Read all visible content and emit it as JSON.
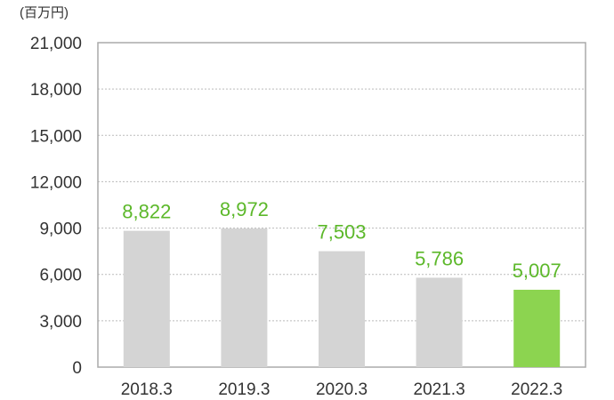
{
  "chart_data": {
    "type": "bar",
    "unit_label": "(百万円)",
    "categories": [
      "2018.3",
      "2019.3",
      "2020.3",
      "2021.3",
      "2022.3"
    ],
    "values": [
      8822,
      8972,
      7503,
      5786,
      5007
    ],
    "value_labels": [
      "8,822",
      "8,972",
      "7,503",
      "5,786",
      "5,007"
    ],
    "ylim": [
      0,
      21000
    ],
    "yticks": [
      0,
      3000,
      6000,
      9000,
      12000,
      15000,
      18000,
      21000
    ],
    "ytick_labels": [
      "0",
      "3,000",
      "6,000",
      "9,000",
      "12,000",
      "15,000",
      "18,000",
      "21,000"
    ],
    "grid": true,
    "colors": {
      "bar": "#d4d4d4",
      "highlight_bar": "#8cd450",
      "value_label": "#5cb82a",
      "highlight_index_color_note": "last bar highlighted"
    }
  }
}
